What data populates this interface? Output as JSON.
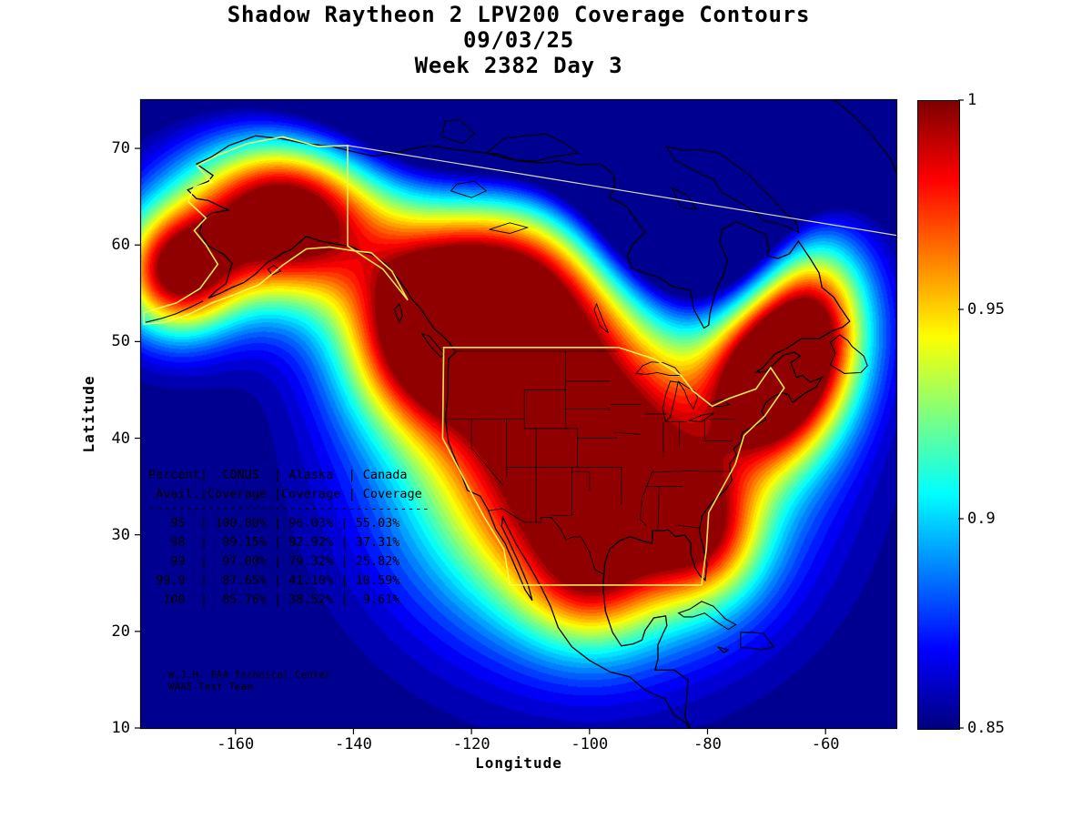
{
  "figure": {
    "title_line1": "Shadow Raytheon 2 LPV200 Coverage Contours",
    "title_line2": "09/03/25",
    "title_line3": "Week 2382 Day 3"
  },
  "axes": {
    "x_label": "Longitude",
    "y_label": "Latitude",
    "x_ticks": [
      "-160",
      "-140",
      "-120",
      "-100",
      "-80",
      "-60"
    ],
    "y_ticks": [
      "70",
      "60",
      "50",
      "40",
      "30",
      "20",
      "10"
    ]
  },
  "colorbar": {
    "tick_labels": [
      "1",
      "0.95",
      "0.9",
      "0.85"
    ],
    "tick_values": [
      1,
      0.95,
      0.9,
      0.85
    ],
    "min": 0.85,
    "max": 1
  },
  "annotation": {
    "line1": "W.J.H. FAA Technical Center",
    "line2": "WAAS Test Team"
  },
  "availability_table": {
    "header_row1": [
      "Percent",
      "CONUS",
      "Alaska",
      "Canada"
    ],
    "header_row2": [
      "Avail.",
      "Coverage",
      "Coverage",
      "Coverage"
    ],
    "rows": [
      [
        "95",
        "100.00%",
        "96.03%",
        "55.03%"
      ],
      [
        "98",
        "99.15%",
        "92.92%",
        "37.31%"
      ],
      [
        "99",
        "97.00%",
        "79.32%",
        "25.82%"
      ],
      [
        "99.9",
        "87.65%",
        "41.10%",
        "10.59%"
      ],
      [
        "100",
        "85.76%",
        "38.52%",
        "9.61%"
      ]
    ]
  },
  "chart_data": {
    "type": "heatmap",
    "title": "Shadow Raytheon 2 LPV200 Coverage Contours",
    "date": "09/03/25",
    "week": 2382,
    "day": 3,
    "xlabel": "Longitude",
    "ylabel": "Latitude",
    "xlim": [
      -176,
      -48
    ],
    "ylim": [
      10,
      75
    ],
    "colormap": "jet",
    "colorbar_range": [
      0.85,
      1
    ],
    "colorbar_ticks": [
      1,
      0.95,
      0.9,
      0.85
    ],
    "contour_levels": 30,
    "availability_summary": {
      "percent_avail": [
        95,
        98,
        99,
        99.9,
        100
      ],
      "conus_coverage_pct": [
        100.0,
        99.15,
        97.0,
        87.65,
        85.76
      ],
      "alaska_coverage_pct": [
        96.03,
        92.92,
        79.32,
        41.1,
        38.52
      ],
      "canada_coverage_pct": [
        55.03,
        37.31,
        25.82,
        10.59,
        9.61
      ]
    },
    "field_model": {
      "base": 0.85,
      "span": 0.15,
      "levels": 30,
      "bumps": [
        {
          "lon": -100,
          "lat": 36.5,
          "sx": 19,
          "sy": 10.5,
          "a": 1.25
        },
        {
          "lon": -152,
          "lat": 63,
          "sx": 12,
          "sy": 6,
          "a": 1.2
        },
        {
          "lon": -128,
          "lat": 51,
          "sx": 10,
          "sy": 7,
          "a": 0.85
        },
        {
          "lon": -112,
          "lat": 55,
          "sx": 14,
          "sy": 8,
          "a": 0.95
        },
        {
          "lon": -70,
          "lat": 46,
          "sx": 7,
          "sy": 6,
          "a": 0.95
        },
        {
          "lon": -62,
          "lat": 52,
          "sx": 7,
          "sy": 7,
          "a": 0.85
        },
        {
          "lon": -170,
          "lat": 57,
          "sx": 7,
          "sy": 4.5,
          "a": 0.9
        },
        {
          "lon": -100,
          "lat": 25,
          "sx": 8,
          "sy": 5,
          "a": 0.35
        },
        {
          "lon": -81,
          "lat": 30,
          "sx": 7,
          "sy": 5,
          "a": 0.5
        }
      ],
      "dips": [
        {
          "lon": -84,
          "lat": 64,
          "sx": 12,
          "sy": 7,
          "a": 0.85
        },
        {
          "lon": -100,
          "lat": 76,
          "sx": 34,
          "sy": 7,
          "a": 0.7
        }
      ]
    }
  }
}
